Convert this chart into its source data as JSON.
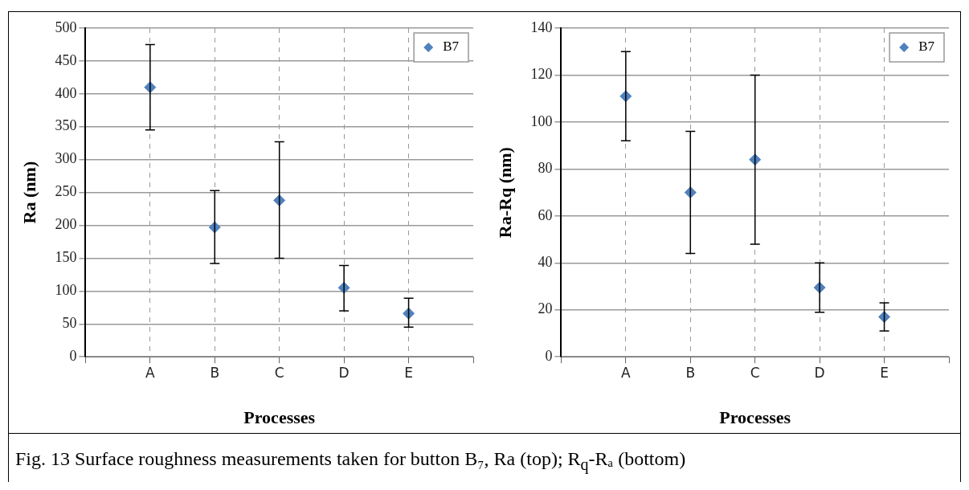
{
  "chart_data": [
    {
      "type": "scatter",
      "categories": [
        "A",
        "B",
        "C",
        "D",
        "E"
      ],
      "xlabel": "Processes",
      "ylabel": "Ra (nm)",
      "series": [
        {
          "name": "B7",
          "color": "#4f81bd",
          "values": [
            410,
            197,
            238,
            105,
            66
          ],
          "errors": [
            [
              345,
              475
            ],
            [
              142,
              253
            ],
            [
              150,
              327
            ],
            [
              70,
              139
            ],
            [
              45,
              89
            ]
          ]
        }
      ],
      "ylim": [
        0,
        500
      ],
      "yticks": [
        0,
        50,
        100,
        150,
        200,
        250,
        300,
        350,
        400,
        450,
        500
      ],
      "grid": true,
      "legend": "top right",
      "marker": "diamond",
      "annotations": [
        "Fig. 13  Surface roughness measurements taken for button B₇, Ra (top);  R$_{q}$-Rₐ (bottom)"
      ]
    },
    {
      "type": "scatter",
      "categories": [
        "A",
        "B",
        "C",
        "D",
        "E"
      ],
      "xlabel": "Processes",
      "ylabel": "Ra-Rq (nm)",
      "series": [
        {
          "name": "B7",
          "color": "#4f81bd",
          "values": [
            111,
            70,
            84,
            29.5,
            17
          ],
          "errors": [
            [
              92,
              130
            ],
            [
              44,
              96
            ],
            [
              48,
              120
            ],
            [
              19,
              40
            ],
            [
              11,
              23
            ]
          ]
        }
      ],
      "ylim": [
        0,
        140
      ],
      "yticks": [
        0,
        20,
        40,
        60,
        80,
        100,
        120,
        140
      ],
      "grid": true,
      "legend": "top right",
      "marker": "diamond"
    }
  ]
}
